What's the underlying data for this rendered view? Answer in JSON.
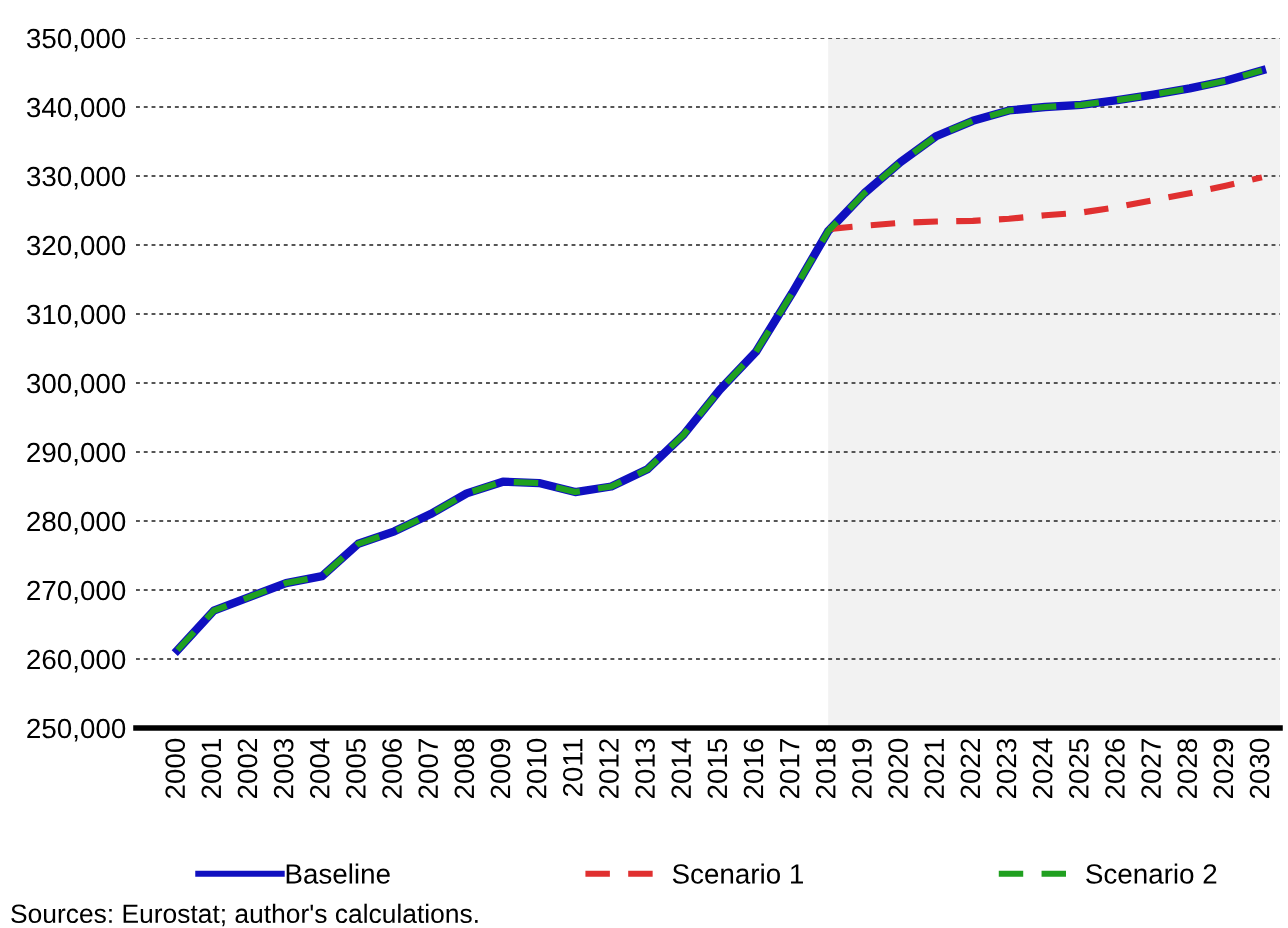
{
  "chart_data": {
    "type": "line",
    "categories": [
      "2000",
      "2001",
      "2002",
      "2003",
      "2004",
      "2005",
      "2006",
      "2007",
      "2008",
      "2009",
      "2010",
      "2011",
      "2012",
      "2013",
      "2014",
      "2015",
      "2016",
      "2017",
      "2018",
      "2019",
      "2020",
      "2021",
      "2022",
      "2023",
      "2024",
      "2025",
      "2026",
      "2027",
      "2028",
      "2029",
      "2030"
    ],
    "series": [
      {
        "name": "Baseline",
        "color": "#1010c0",
        "line_style": "solid",
        "values": [
          261300,
          267000,
          269000,
          271000,
          272000,
          276700,
          278500,
          281000,
          284000,
          285700,
          285500,
          284200,
          285000,
          287500,
          292500,
          299000,
          304500,
          313000,
          322000,
          327500,
          332000,
          335800,
          338000,
          339500,
          340000,
          340300,
          341000,
          341800,
          342700,
          343800,
          345300
        ]
      },
      {
        "name": "Scenario 1",
        "color": "#e03030",
        "line_style": "dashed",
        "values": [
          null,
          null,
          null,
          null,
          null,
          null,
          null,
          null,
          null,
          null,
          null,
          null,
          null,
          null,
          null,
          null,
          null,
          null,
          322300,
          322800,
          323200,
          323400,
          323500,
          323800,
          324300,
          324700,
          325500,
          326500,
          327500,
          328600,
          329800
        ]
      },
      {
        "name": "Scenario 2",
        "color": "#20a020",
        "line_style": "dashed",
        "values": [
          261300,
          267000,
          269000,
          271000,
          272000,
          276700,
          278500,
          281000,
          284000,
          285700,
          285500,
          284200,
          285000,
          287500,
          292500,
          299000,
          304500,
          313000,
          322000,
          327500,
          332000,
          335800,
          338000,
          339500,
          340000,
          340300,
          341000,
          341800,
          342700,
          343800,
          345300
        ]
      }
    ],
    "ylim": [
      250000,
      350000
    ],
    "yticks": [
      {
        "value": 250000,
        "label": "250,000"
      },
      {
        "value": 260000,
        "label": "260,000"
      },
      {
        "value": 270000,
        "label": "270,000"
      },
      {
        "value": 280000,
        "label": "280,000"
      },
      {
        "value": 290000,
        "label": "290,000"
      },
      {
        "value": 300000,
        "label": "300,000"
      },
      {
        "value": 310000,
        "label": "310,000"
      },
      {
        "value": 320000,
        "label": "320,000"
      },
      {
        "value": 330000,
        "label": "330,000"
      },
      {
        "value": 340000,
        "label": "340,000"
      },
      {
        "value": 350000,
        "label": "350,000"
      }
    ],
    "grid": "y",
    "legend": "bottom",
    "bands": [
      {
        "axis": "x",
        "from": "2018",
        "to": "2030",
        "color": "#f2f2f2"
      }
    ],
    "annotations": [
      "Sources: Eurostat; author's calculations."
    ]
  }
}
